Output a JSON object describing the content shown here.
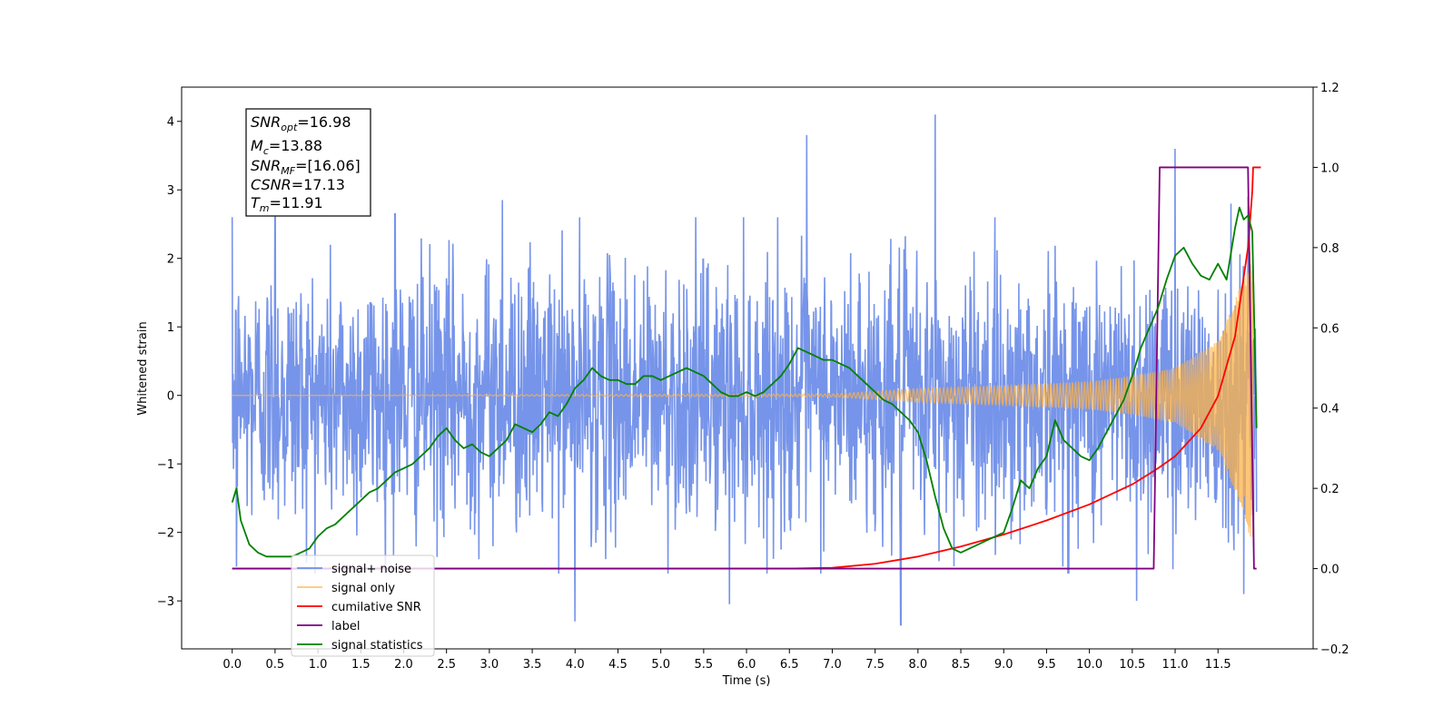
{
  "chart_data": {
    "type": "line",
    "xlabel": "Time (s)",
    "ylabel_left": "Whitened strain",
    "ylabel_right": "",
    "xlim": [
      -0.59,
      12.61
    ],
    "ylim_left": [
      -3.7,
      4.5
    ],
    "ylim_right": [
      -0.2,
      1.2
    ],
    "x_ticks": [
      "0.0",
      "0.5",
      "1.0",
      "1.5",
      "2.0",
      "2.5",
      "3.0",
      "3.5",
      "4.0",
      "4.5",
      "5.0",
      "5.5",
      "6.0",
      "6.5",
      "7.0",
      "7.5",
      "8.0",
      "8.5",
      "9.0",
      "9.5",
      "10.0",
      "10.5",
      "11.0",
      "11.5"
    ],
    "y_ticks_left": [
      "−3",
      "−2",
      "−1",
      "0",
      "1",
      "2",
      "3",
      "4"
    ],
    "y_ticks_right": [
      "−0.2",
      "0.0",
      "0.2",
      "0.4",
      "0.6",
      "0.8",
      "1.0",
      "1.2"
    ],
    "grid": false,
    "legend_position": "lower-left",
    "annotation": {
      "lines": [
        {
          "sym": "SNR",
          "sub": "opt",
          "value": "=16.98"
        },
        {
          "sym": "M",
          "sub": "c",
          "value": "=13.88"
        },
        {
          "sym": "SNR",
          "sub": "MF",
          "value": "=[16.06]"
        },
        {
          "sym": "CSNR",
          "sub": "",
          "value": "=17.13"
        },
        {
          "sym": "T",
          "sub": "m",
          "value": "=11.91"
        }
      ]
    },
    "series": [
      {
        "name": "signal+ noise",
        "axis": "left",
        "color": "#6f8ee8",
        "kind": "noise",
        "x_range": [
          0.0,
          11.95
        ],
        "spikes_up": [
          [
            0.5,
            2.6
          ],
          [
            1.9,
            2.65
          ],
          [
            3.15,
            2.85
          ],
          [
            6.7,
            3.8
          ],
          [
            8.2,
            4.1
          ],
          [
            11.0,
            3.6
          ],
          [
            11.65,
            2.8
          ],
          [
            11.85,
            2.9
          ]
        ],
        "spikes_down": [
          [
            0.05,
            -2.5
          ],
          [
            4.0,
            -3.3
          ],
          [
            5.8,
            -3.05
          ],
          [
            7.8,
            -3.35
          ],
          [
            10.55,
            -3.0
          ],
          [
            11.8,
            -2.9
          ]
        ]
      },
      {
        "name": "signal only",
        "axis": "left",
        "color": "#ffb347",
        "kind": "chirp",
        "x_range": [
          0.0,
          11.95
        ],
        "peak_time": 11.91,
        "envelope": [
          [
            0.0,
            0.0
          ],
          [
            7.0,
            0.02
          ],
          [
            7.5,
            0.06
          ],
          [
            8.0,
            0.1
          ],
          [
            9.0,
            0.14
          ],
          [
            10.0,
            0.2
          ],
          [
            10.5,
            0.28
          ],
          [
            11.0,
            0.4
          ],
          [
            11.5,
            0.8
          ],
          [
            11.8,
            1.7
          ],
          [
            11.91,
            2.3
          ]
        ]
      },
      {
        "name": "cumilative SNR",
        "axis": "right",
        "color": "#ff0000",
        "x": [
          0.0,
          6.5,
          7.0,
          7.5,
          8.0,
          8.5,
          9.0,
          9.5,
          10.0,
          10.5,
          10.8,
          11.0,
          11.3,
          11.5,
          11.7,
          11.85,
          11.9,
          11.91,
          11.95,
          12.0
        ],
        "y": [
          0.0,
          0.0,
          0.002,
          0.012,
          0.03,
          0.055,
          0.085,
          0.12,
          0.16,
          0.21,
          0.25,
          0.28,
          0.35,
          0.43,
          0.58,
          0.8,
          0.94,
          1.0,
          1.0,
          1.0
        ]
      },
      {
        "name": "label",
        "axis": "right",
        "color": "#800080",
        "x": [
          0.0,
          10.75,
          10.82,
          11.85,
          11.92,
          11.95
        ],
        "y": [
          0.0,
          0.0,
          1.0,
          1.0,
          0.0,
          0.0
        ]
      },
      {
        "name": "signal statistics",
        "axis": "right",
        "color": "#008000",
        "x": [
          0.0,
          0.05,
          0.1,
          0.2,
          0.3,
          0.4,
          0.5,
          0.6,
          0.7,
          0.8,
          0.9,
          1.0,
          1.1,
          1.2,
          1.3,
          1.4,
          1.5,
          1.6,
          1.7,
          1.8,
          1.9,
          2.0,
          2.1,
          2.2,
          2.3,
          2.4,
          2.5,
          2.6,
          2.7,
          2.8,
          2.9,
          3.0,
          3.1,
          3.2,
          3.3,
          3.4,
          3.5,
          3.6,
          3.7,
          3.8,
          3.9,
          4.0,
          4.1,
          4.2,
          4.3,
          4.4,
          4.5,
          4.6,
          4.7,
          4.8,
          4.9,
          5.0,
          5.1,
          5.2,
          5.3,
          5.4,
          5.5,
          5.6,
          5.7,
          5.8,
          5.9,
          6.0,
          6.1,
          6.2,
          6.3,
          6.4,
          6.5,
          6.6,
          6.7,
          6.8,
          6.9,
          7.0,
          7.1,
          7.2,
          7.3,
          7.4,
          7.5,
          7.6,
          7.7,
          7.8,
          7.9,
          8.0,
          8.1,
          8.2,
          8.3,
          8.4,
          8.5,
          8.6,
          8.7,
          8.8,
          8.9,
          9.0,
          9.1,
          9.2,
          9.3,
          9.4,
          9.5,
          9.6,
          9.7,
          9.8,
          9.9,
          10.0,
          10.1,
          10.2,
          10.3,
          10.4,
          10.5,
          10.6,
          10.7,
          10.8,
          10.9,
          11.0,
          11.1,
          11.2,
          11.3,
          11.4,
          11.5,
          11.6,
          11.7,
          11.75,
          11.8,
          11.85,
          11.9,
          11.95
        ],
        "y": [
          0.165,
          0.2,
          0.12,
          0.06,
          0.04,
          0.03,
          0.03,
          0.03,
          0.03,
          0.04,
          0.05,
          0.08,
          0.1,
          0.11,
          0.13,
          0.15,
          0.17,
          0.19,
          0.2,
          0.22,
          0.24,
          0.25,
          0.26,
          0.28,
          0.3,
          0.33,
          0.35,
          0.32,
          0.3,
          0.31,
          0.29,
          0.28,
          0.3,
          0.32,
          0.36,
          0.35,
          0.34,
          0.36,
          0.39,
          0.38,
          0.41,
          0.45,
          0.47,
          0.5,
          0.48,
          0.47,
          0.47,
          0.46,
          0.46,
          0.48,
          0.48,
          0.47,
          0.48,
          0.49,
          0.5,
          0.49,
          0.48,
          0.46,
          0.44,
          0.43,
          0.43,
          0.44,
          0.43,
          0.44,
          0.46,
          0.48,
          0.51,
          0.55,
          0.54,
          0.53,
          0.52,
          0.52,
          0.51,
          0.5,
          0.48,
          0.46,
          0.44,
          0.42,
          0.41,
          0.39,
          0.37,
          0.34,
          0.27,
          0.18,
          0.1,
          0.05,
          0.04,
          0.05,
          0.06,
          0.07,
          0.08,
          0.09,
          0.15,
          0.22,
          0.2,
          0.25,
          0.28,
          0.37,
          0.32,
          0.3,
          0.28,
          0.27,
          0.3,
          0.34,
          0.38,
          0.42,
          0.48,
          0.55,
          0.6,
          0.65,
          0.72,
          0.78,
          0.8,
          0.76,
          0.73,
          0.72,
          0.76,
          0.72,
          0.85,
          0.9,
          0.87,
          0.88,
          0.84,
          0.35
        ]
      }
    ]
  }
}
